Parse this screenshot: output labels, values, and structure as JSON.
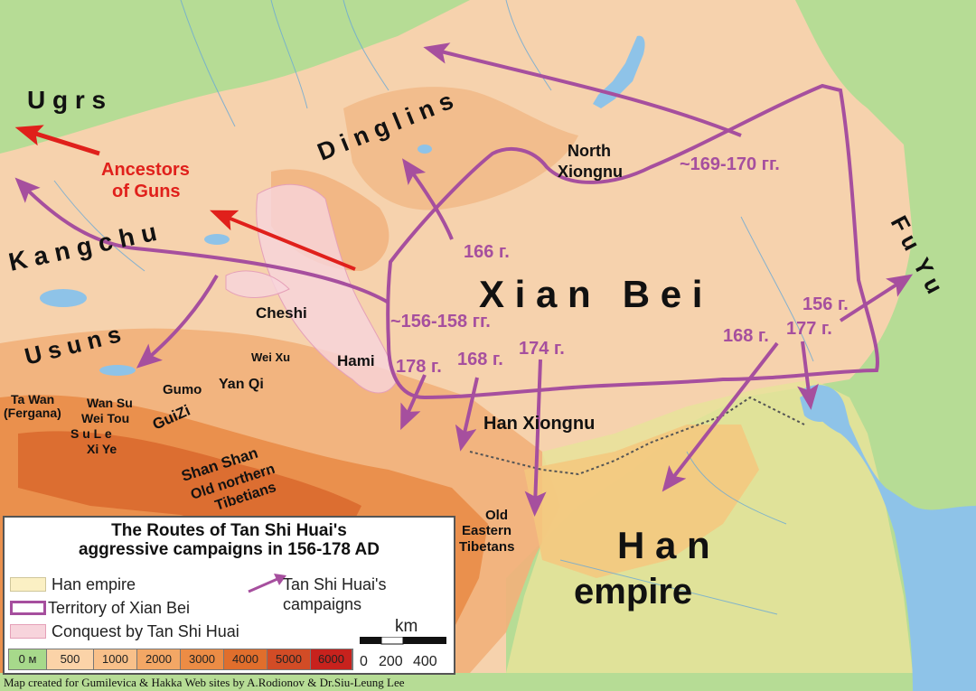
{
  "labels": {
    "ugrs": "U g r s",
    "ancestors_of_guns_1": "Ancestors",
    "ancestors_of_guns_2": "of Guns",
    "kangchu": "K a n g c h u",
    "dinglins": "D i n g l i n s",
    "north_xiongnu_1": "North",
    "north_xiongnu_2": "Xiongnu",
    "usuns": "U s u n s",
    "cheshi": "Cheshi",
    "hami": "Hami",
    "wei_xu": "Wei Xu",
    "yan_qi": "Yan Qi",
    "gumo": "Gumo",
    "guizi": "GuiZi",
    "ta_wan_1": "Ta Wan",
    "ta_wan_2": "(Fergana)",
    "wan_su": "Wan Su",
    "wei_tou": "Wei Tou",
    "su_le": "S u L e",
    "xi_ye": "Xi Ye",
    "shan_shan": "Shan Shan",
    "old_northern_1": "Old northern",
    "old_northern_2": "Tibetians",
    "xian_bei": "X i a n   B e i",
    "han_xiongnu": "Han Xiongnu",
    "old_eastern_1": "Old",
    "old_eastern_2": "Eastern",
    "old_eastern_3": "Tibetans",
    "han_empire_1": "H a n",
    "han_empire_2": "empire",
    "fu_yu": "F u  Y u"
  },
  "dates": {
    "d166": "166 г.",
    "d169": "~169-170 гг.",
    "d156_158": "~156-158 гг.",
    "d178": "178 г.",
    "d168a": "168 г.",
    "d174": "174 г.",
    "d168b": "168 г.",
    "d177": "177 г.",
    "d156": "156 г."
  },
  "legend": {
    "title_1": "The Routes of Tan Shi Huai's",
    "title_2": "aggressive campaigns in 156-178 AD",
    "han_empire": "Han empire",
    "territory": "Territory of Xian Bei",
    "conquest": "Conquest by Tan Shi Huai",
    "campaigns_1": "Tan Shi Huai's",
    "campaigns_2": "campaigns",
    "scale_unit": "km",
    "scale_0": "0",
    "scale_200": "200",
    "scale_400": "400",
    "elevation": [
      {
        "label": "0 м",
        "color": "#a7d98b"
      },
      {
        "label": "500",
        "color": "#fbd3a8"
      },
      {
        "label": "1000",
        "color": "#f8c08a"
      },
      {
        "label": "2000",
        "color": "#f3a765"
      },
      {
        "label": "3000",
        "color": "#ec8c45"
      },
      {
        "label": "4000",
        "color": "#e06e2c"
      },
      {
        "label": "5000",
        "color": "#d24c26"
      },
      {
        "label": "6000",
        "color": "#c7221d"
      }
    ]
  },
  "credit": "Map created for Gumilevica & Hakka Web sites by A.Rodionov & Dr.Siu-Leung Lee",
  "colors": {
    "campaign": "#a64f9e",
    "territory": "#a64f9e",
    "ancestors": "#e0201b",
    "han_empire": "#fbf0c4",
    "conquest": "#f7d4dc",
    "sea": "#8ec3e8",
    "steppe": "#f8c7a0",
    "lowland": "#a7d98b"
  }
}
